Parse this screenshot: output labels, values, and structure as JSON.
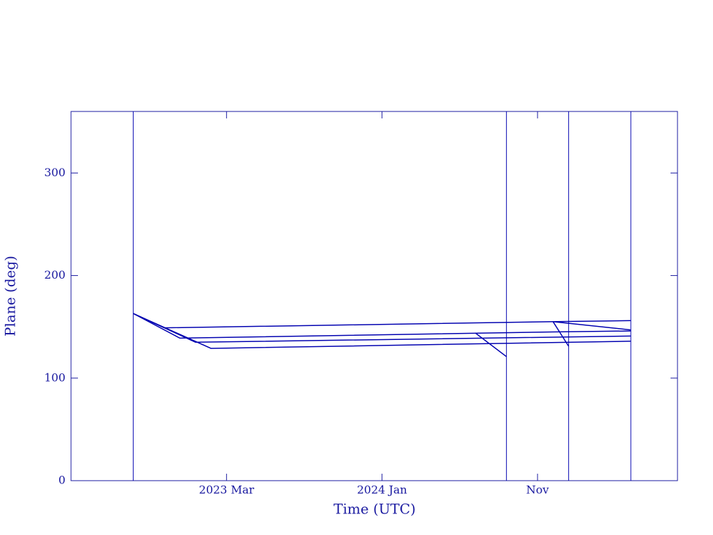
{
  "chart_data": {
    "type": "line",
    "x_label": "Time (UTC)",
    "y_label": "Plane (deg)",
    "xlim": [
      "2022-05",
      "2025-08"
    ],
    "ylim": [
      0,
      360
    ],
    "xticks": [
      {
        "value": "2023-03",
        "label": "2023 Mar"
      },
      {
        "value": "2024-01",
        "label": "2024 Jan"
      },
      {
        "value": "2024-11",
        "label": "Nov"
      }
    ],
    "yticks": [
      0,
      100,
      200,
      300
    ],
    "color": "#0000b0",
    "markers": [
      "2022-09",
      "2024-09",
      "2025-01",
      "2025-05"
    ],
    "series": [
      {
        "x": [
          "2022-09",
          "2022-11",
          "2024-12",
          "2025-05"
        ],
        "values": [
          163,
          149,
          155,
          156
        ]
      },
      {
        "x": [
          "2024-12",
          "2025-05"
        ],
        "values": [
          155,
          147
        ]
      },
      {
        "x": [
          "2022-09",
          "2022-12",
          "2024-12",
          "2025-05"
        ],
        "values": [
          163,
          139,
          145,
          146
        ]
      },
      {
        "x": [
          "2024-12",
          "2025-01"
        ],
        "values": [
          155,
          131
        ]
      },
      {
        "x": [
          "2022-09",
          "2023-01",
          "2025-05"
        ],
        "values": [
          163,
          135,
          141
        ]
      },
      {
        "x": [
          "2024-07",
          "2024-09"
        ],
        "values": [
          144,
          121
        ]
      },
      {
        "x": [
          "2022-09",
          "2023-02",
          "2025-05"
        ],
        "values": [
          163,
          129,
          136
        ]
      }
    ]
  }
}
